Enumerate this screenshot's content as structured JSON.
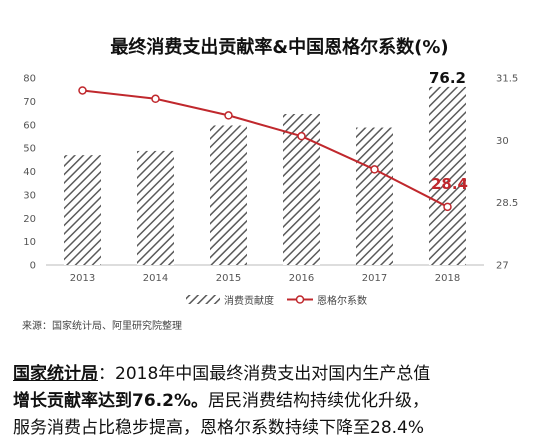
{
  "chart_data": {
    "type": "bar",
    "title": "最终消费支出贡献率&中国恩格尔系数(%)",
    "categories": [
      "2013",
      "2014",
      "2015",
      "2016",
      "2017",
      "2018"
    ],
    "series": [
      {
        "name": "消费贡献度",
        "type": "bar",
        "axis": "left",
        "values": [
          47.0,
          48.8,
          59.7,
          64.6,
          58.8,
          76.2
        ]
      },
      {
        "name": "恩格尔系数",
        "type": "line",
        "axis": "right",
        "values": [
          31.2,
          31.0,
          30.6,
          30.1,
          29.3,
          28.4
        ]
      }
    ],
    "left_axis": {
      "ylim": [
        0,
        80
      ],
      "ticks": [
        "0",
        "10",
        "20",
        "30",
        "40",
        "50",
        "60",
        "70",
        "80"
      ]
    },
    "right_axis": {
      "ylim": [
        27,
        31.5
      ],
      "ticks": [
        "27",
        "28.5",
        "30",
        "31.5"
      ]
    },
    "annotations": [
      {
        "series": "消费贡献度",
        "category": "2018",
        "text": "76.2",
        "color": "#111111"
      },
      {
        "series": "恩格尔系数",
        "category": "2018",
        "text": "28.4",
        "color": "#c0282d"
      }
    ],
    "legend": "bottom",
    "grid": false,
    "line_color": "#c0282d",
    "bar_color": "#555555"
  },
  "source": "来源：国家统计局、阿里研究院整理",
  "caption": {
    "line1_lead": "国家统计局",
    "line1_rest": "：2018年中国最终消费支出对国内生产总值",
    "line2_strong": "增长贡献率达到76.2%。",
    "line2_rest": "居民消费结构持续优化升级，",
    "line3": "服务消费占比稳步提高，恩格尔系数持续下降至28.4%"
  }
}
